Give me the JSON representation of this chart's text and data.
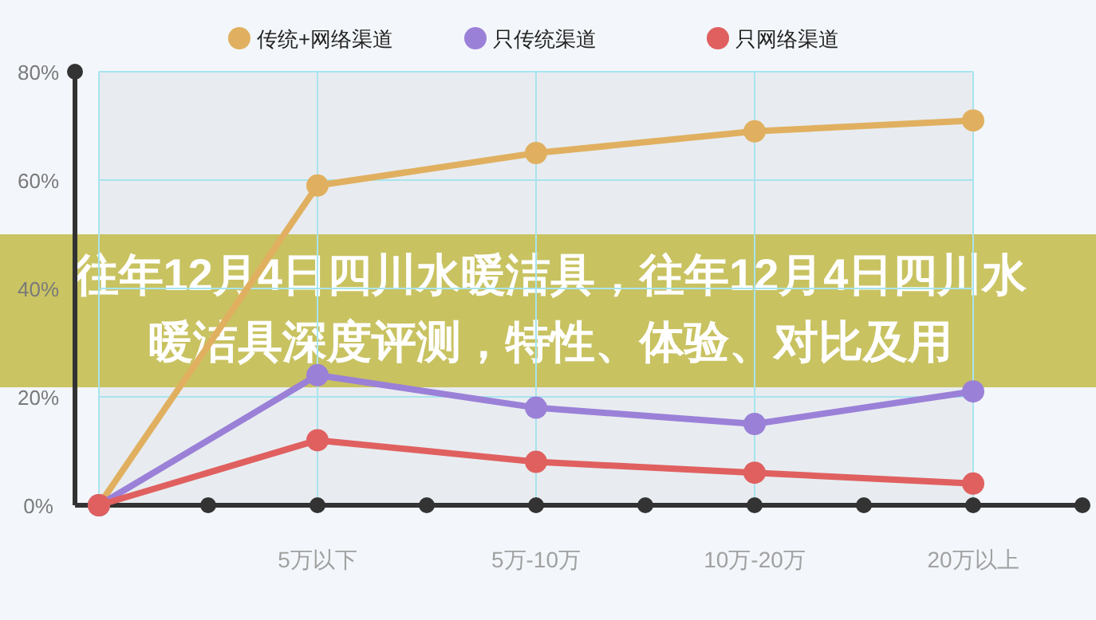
{
  "chart_data": {
    "type": "line",
    "title": "往年12月4日四川水暖洁具，往年12月4日四川水暖洁具深度评测，特性、体验、对比及用",
    "categories": [
      null,
      "5万以下",
      "5万-10万",
      "10万-20万",
      "20万以上"
    ],
    "series": [
      {
        "name": "传统+网络渠道",
        "color": "#e0b060",
        "values": [
          0,
          59,
          65,
          69,
          71
        ]
      },
      {
        "name": "只传统渠道",
        "color": "#9b80d8",
        "values": [
          0,
          24,
          18,
          15,
          21
        ]
      },
      {
        "name": "只网络渠道",
        "color": "#e06060",
        "values": [
          0,
          12,
          8,
          6,
          4
        ]
      }
    ],
    "ylim": [
      0,
      80
    ],
    "yticks": [
      {
        "value": 0,
        "label": "0%"
      },
      {
        "value": 20,
        "label": "20%"
      },
      {
        "value": 40,
        "label": "40%"
      },
      {
        "value": 60,
        "label": "60%"
      },
      {
        "value": 80,
        "label": "80%"
      }
    ],
    "grid": true,
    "legend": "top",
    "marker": "circle",
    "line_style": "solid"
  }
}
